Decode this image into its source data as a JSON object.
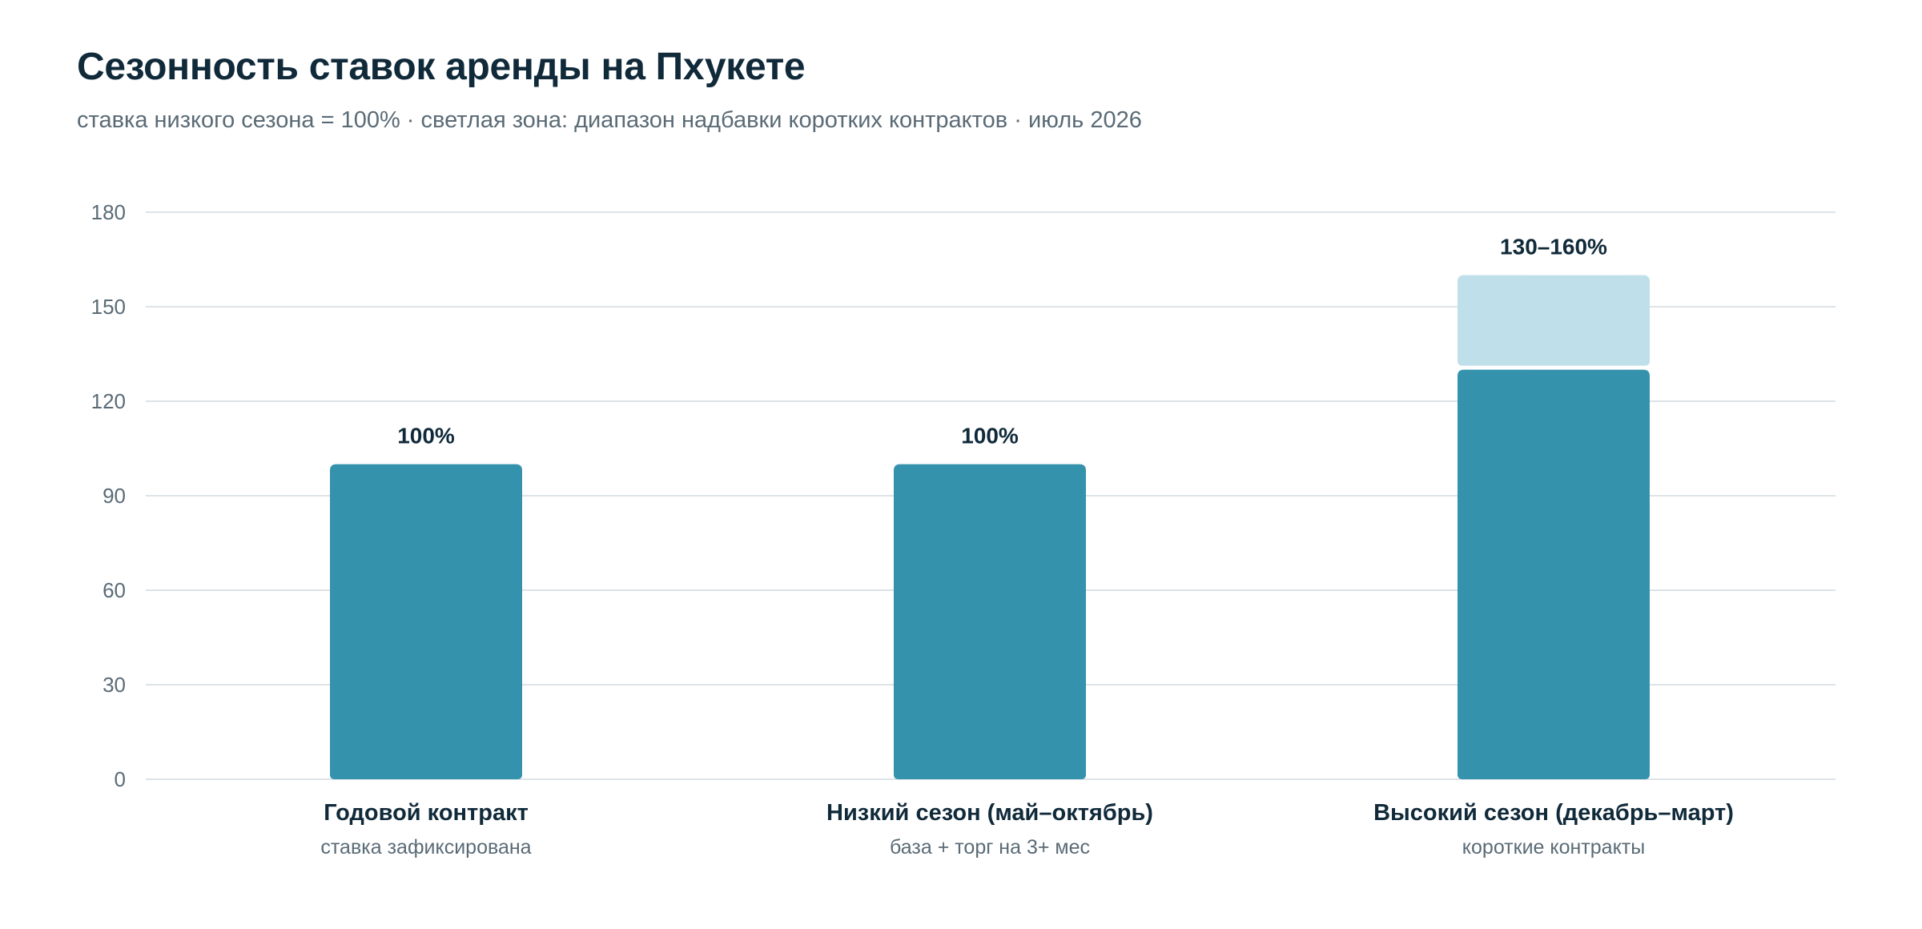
{
  "header": {
    "title": "Сезонность ставок аренды на Пхукете",
    "subtitle": "ставка низкого сезона = 100% · светлая зона: диапазон надбавки коротких контрактов · июль 2026"
  },
  "colors": {
    "bar": "#3592ad",
    "range": "#bfe0ea",
    "text": "#102a3a",
    "muted": "#5a6b76",
    "grid": "#dde3e7"
  },
  "chart_data": {
    "type": "bar",
    "title": "Сезонность ставок аренды на Пхукете",
    "subtitle": "ставка низкого сезона = 100% · светлая зона: диапазон надбавки коротких контрактов · июль 2026",
    "xlabel": "",
    "ylabel": "",
    "ylim": [
      0,
      180
    ],
    "yticks": [
      0,
      30,
      60,
      90,
      120,
      150,
      180
    ],
    "grid": true,
    "categories": [
      "Годовой контракт",
      "Низкий сезон (май–октябрь)",
      "Высокий сезон (декабрь–март)"
    ],
    "sublabels": [
      "ставка зафиксирована",
      "база + торг на 3+ мес",
      "короткие контракты"
    ],
    "values": [
      100,
      100,
      130
    ],
    "range_high": [
      null,
      null,
      160
    ],
    "data_labels": [
      "100%",
      "100%",
      "130–160%"
    ]
  }
}
